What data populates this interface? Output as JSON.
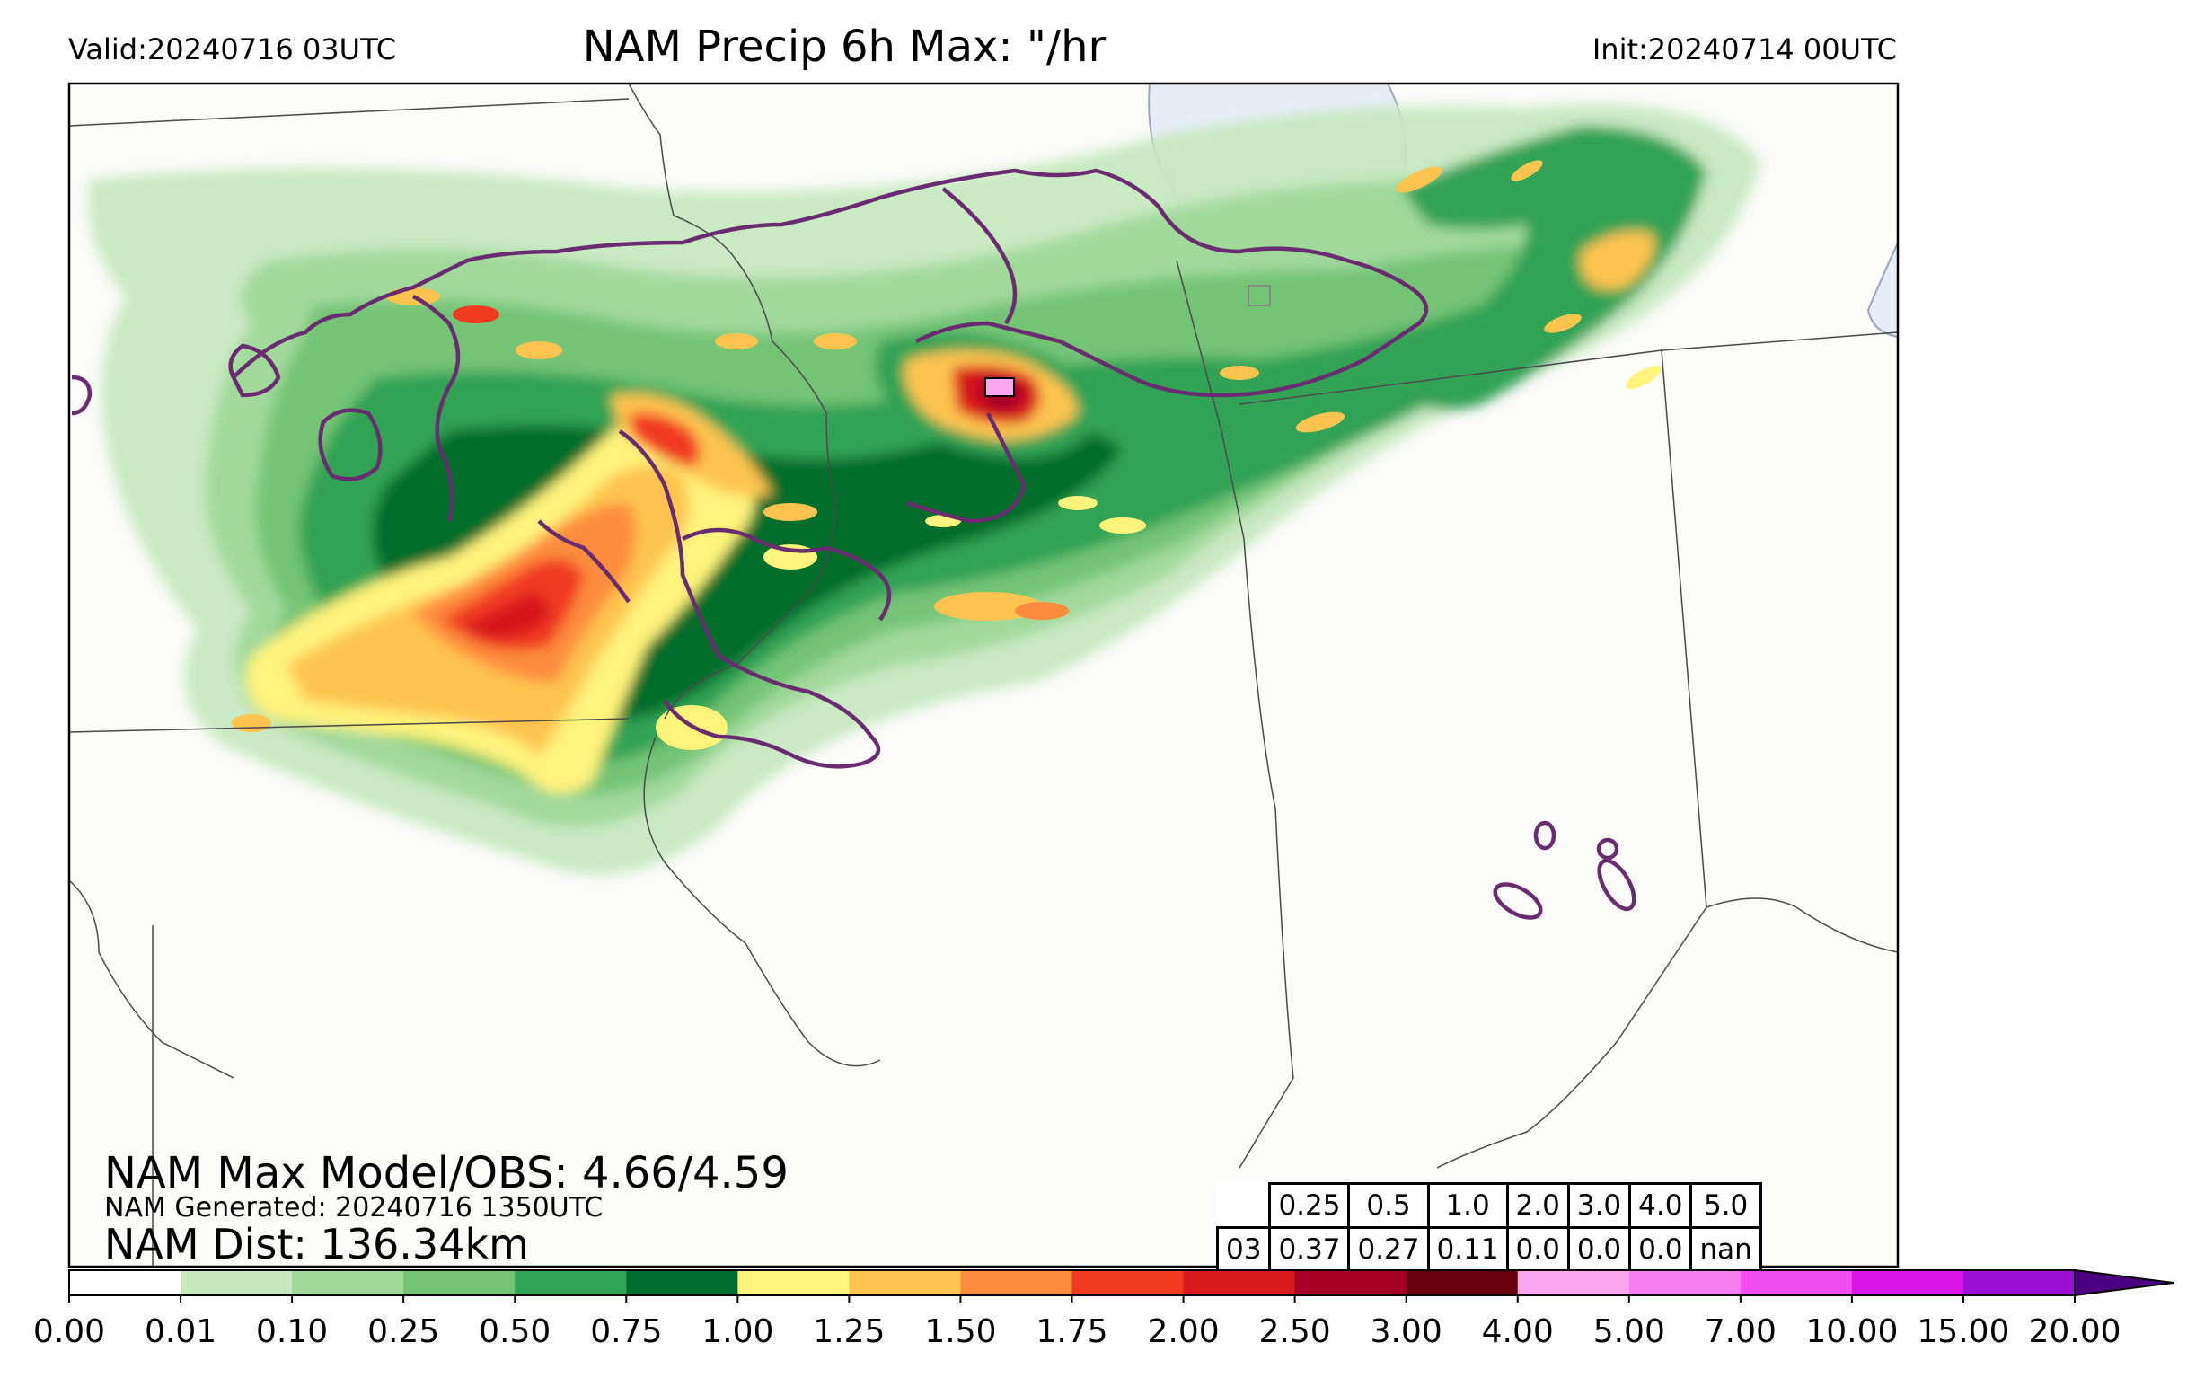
{
  "header": {
    "valid": "Valid:20240716 03UTC",
    "title": "NAM Precip 6h Max: \"/hr",
    "init": "Init:20240714 00UTC"
  },
  "stats": {
    "max_line": "NAM Max Model/OBS: 4.66/4.59",
    "generated_line": "NAM Generated: 20240716 1350UTC",
    "dist_line": "NAM Dist: 136.34km"
  },
  "table": {
    "thresholds": [
      "0.25",
      "0.5",
      "1.0",
      "2.0",
      "3.0",
      "4.0",
      "5.0"
    ],
    "row_label": "03",
    "values": [
      "0.37",
      "0.27",
      "0.11",
      "0.0",
      "0.0",
      "0.0",
      "nan"
    ]
  },
  "colorbar": {
    "ticks": [
      "0.00",
      "0.01",
      "0.10",
      "0.25",
      "0.50",
      "0.75",
      "1.00",
      "1.25",
      "1.50",
      "1.75",
      "2.00",
      "2.50",
      "3.00",
      "4.00",
      "5.00",
      "7.00",
      "10.00",
      "15.00",
      "20.00"
    ],
    "colors": [
      "#ffffff",
      "#c7e9c0",
      "#a1d99b",
      "#74c476",
      "#31a354",
      "#006d2c",
      "#fff37c",
      "#fec44f",
      "#fd8d3c",
      "#f03b20",
      "#d7191c",
      "#a50026",
      "#67000d",
      "#f9a8f0",
      "#f57ff0",
      "#f24df2",
      "#d916e8",
      "#9b10d4"
    ],
    "extend_color": "#4b0082"
  },
  "colors": {
    "obs_contour": "#6a2c70",
    "lake": "#e6edf7",
    "land": "#fbfbf9",
    "borders": "#4a4a4a"
  }
}
